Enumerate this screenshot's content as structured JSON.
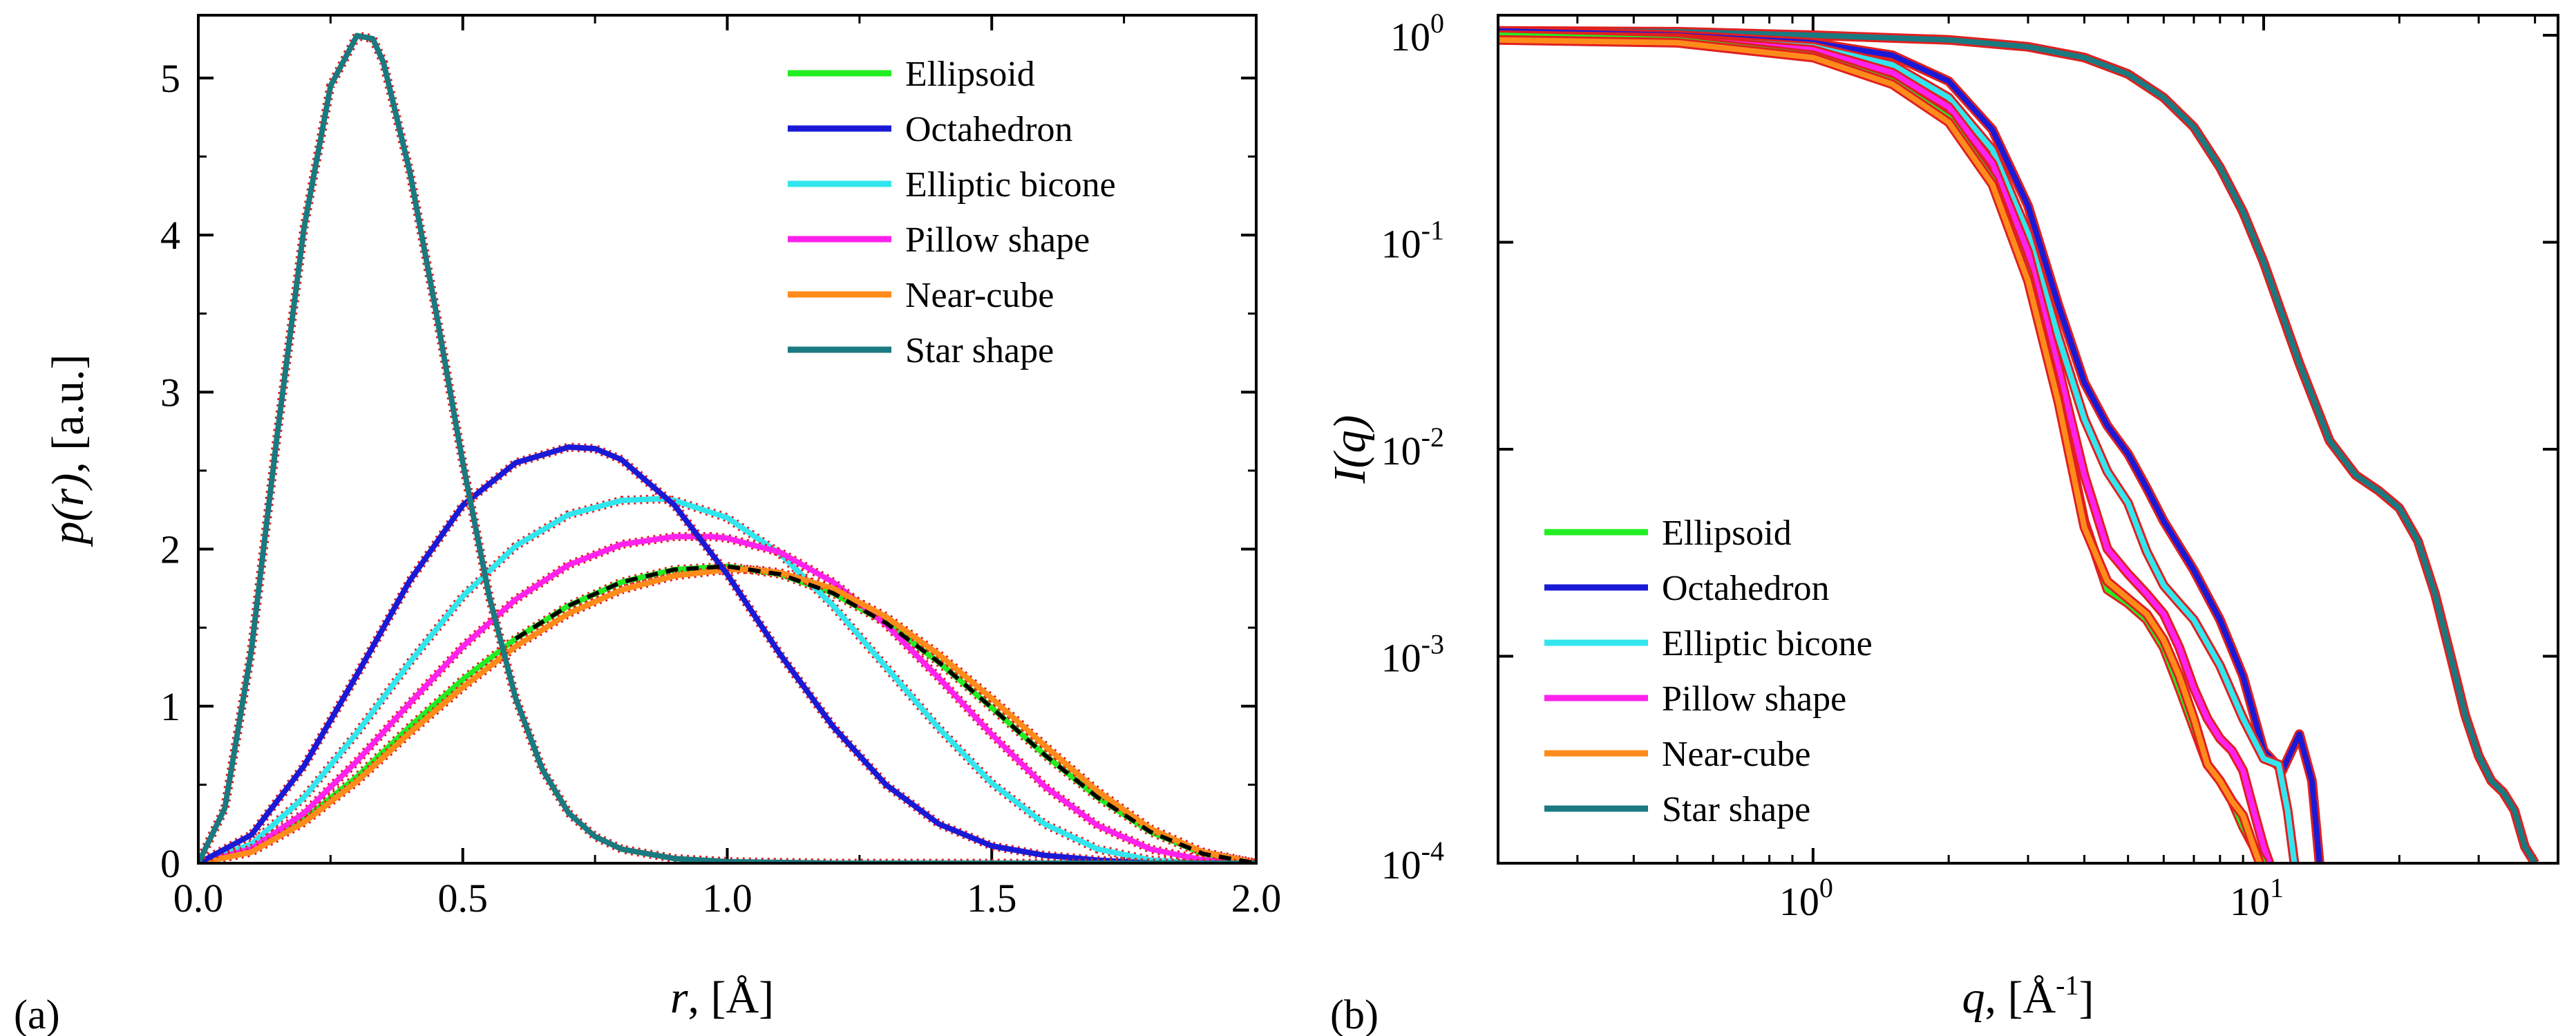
{
  "colors": {
    "Ellipsoid": "#22ee22",
    "Octahedron": "#1a1ad6",
    "Elliptic bicone": "#33e6ee",
    "Pillow shape": "#ff22ee",
    "Near-cube": "#ff8c1a",
    "Star shape": "#1a7a80",
    "error_bars": "#e02020"
  },
  "chart_data": [
    {
      "type": "line",
      "panel_label": "(a)",
      "xlabel_main": "r",
      "xlabel_unit": ", [Å]",
      "ylabel_main": "p(r)",
      "ylabel_unit": ", [a.u.]",
      "xlim": [
        0.0,
        2.0
      ],
      "ylim": [
        0,
        5.4
      ],
      "xticks": [
        0.0,
        0.5,
        1.0,
        1.5,
        2.0
      ],
      "xtick_labels": [
        "0.0",
        "0.5",
        "1.0",
        "1.5",
        "2.0"
      ],
      "yticks": [
        0,
        1,
        2,
        3,
        4,
        5
      ],
      "ytick_labels": [
        "0",
        "1",
        "2",
        "3",
        "4",
        "5"
      ],
      "legend_position": "top-right",
      "legend": [
        "Ellipsoid",
        "Octahedron",
        "Elliptic bicone",
        "Pillow shape",
        "Near-cube",
        "Star shape"
      ],
      "series": [
        {
          "name": "Ellipsoid",
          "x": [
            0.0,
            0.1,
            0.2,
            0.3,
            0.4,
            0.5,
            0.6,
            0.7,
            0.8,
            0.9,
            1.0,
            1.1,
            1.2,
            1.3,
            1.4,
            1.5,
            1.6,
            1.7,
            1.8,
            1.9,
            2.0
          ],
          "y": [
            0.0,
            0.08,
            0.28,
            0.55,
            0.87,
            1.17,
            1.43,
            1.64,
            1.79,
            1.87,
            1.89,
            1.84,
            1.72,
            1.53,
            1.28,
            0.99,
            0.69,
            0.42,
            0.2,
            0.06,
            0.0
          ]
        },
        {
          "name": "Octahedron",
          "x": [
            0.0,
            0.1,
            0.2,
            0.3,
            0.4,
            0.5,
            0.6,
            0.7,
            0.75,
            0.8,
            0.9,
            1.0,
            1.1,
            1.2,
            1.3,
            1.4,
            1.5,
            1.6,
            1.7,
            1.8,
            1.9,
            2.0
          ],
          "y": [
            0.0,
            0.18,
            0.62,
            1.2,
            1.8,
            2.28,
            2.55,
            2.65,
            2.64,
            2.57,
            2.28,
            1.84,
            1.33,
            0.87,
            0.5,
            0.25,
            0.11,
            0.05,
            0.02,
            0.0,
            0.0,
            0.0
          ]
        },
        {
          "name": "Elliptic bicone",
          "x": [
            0.0,
            0.1,
            0.2,
            0.3,
            0.4,
            0.5,
            0.6,
            0.7,
            0.8,
            0.87,
            0.9,
            1.0,
            1.1,
            1.2,
            1.3,
            1.4,
            1.5,
            1.6,
            1.7,
            1.8,
            1.9,
            2.0
          ],
          "y": [
            0.0,
            0.12,
            0.42,
            0.83,
            1.28,
            1.7,
            2.02,
            2.22,
            2.31,
            2.32,
            2.31,
            2.2,
            1.97,
            1.64,
            1.25,
            0.86,
            0.51,
            0.25,
            0.09,
            0.02,
            0.0,
            0.0
          ]
        },
        {
          "name": "Pillow shape",
          "x": [
            0.0,
            0.1,
            0.2,
            0.3,
            0.4,
            0.5,
            0.6,
            0.7,
            0.8,
            0.9,
            0.97,
            1.0,
            1.1,
            1.2,
            1.3,
            1.4,
            1.5,
            1.6,
            1.7,
            1.8,
            1.9,
            2.0
          ],
          "y": [
            0.0,
            0.09,
            0.32,
            0.65,
            1.02,
            1.38,
            1.68,
            1.9,
            2.03,
            2.08,
            2.08,
            2.07,
            1.98,
            1.79,
            1.52,
            1.18,
            0.82,
            0.49,
            0.24,
            0.09,
            0.02,
            0.0
          ]
        },
        {
          "name": "Near-cube",
          "x": [
            0.0,
            0.1,
            0.2,
            0.3,
            0.4,
            0.5,
            0.6,
            0.7,
            0.8,
            0.9,
            1.0,
            1.05,
            1.1,
            1.2,
            1.3,
            1.4,
            1.5,
            1.6,
            1.7,
            1.8,
            1.9,
            2.0
          ],
          "y": [
            0.0,
            0.07,
            0.26,
            0.52,
            0.83,
            1.12,
            1.38,
            1.59,
            1.74,
            1.83,
            1.87,
            1.87,
            1.85,
            1.75,
            1.57,
            1.33,
            1.05,
            0.75,
            0.46,
            0.22,
            0.07,
            0.0
          ]
        },
        {
          "name": "Star shape",
          "x": [
            0.0,
            0.05,
            0.1,
            0.15,
            0.2,
            0.25,
            0.3,
            0.33,
            0.35,
            0.4,
            0.45,
            0.5,
            0.55,
            0.6,
            0.65,
            0.7,
            0.75,
            0.8,
            0.9,
            1.0,
            1.2,
            1.5,
            2.0
          ],
          "y": [
            0.0,
            0.35,
            1.35,
            2.75,
            4.05,
            4.95,
            5.27,
            5.25,
            5.1,
            4.4,
            3.5,
            2.55,
            1.7,
            1.05,
            0.6,
            0.32,
            0.17,
            0.09,
            0.03,
            0.01,
            0.0,
            0.0,
            0.0
          ]
        }
      ]
    },
    {
      "type": "line",
      "panel_label": "(b)",
      "xlabel_main": "q",
      "xlabel_unit": ", [Å",
      "xlabel_sup": "-1",
      "xlabel_close": "]",
      "ylabel_main": "I(q)",
      "xscale": "log",
      "yscale": "log",
      "xlim": [
        0.2,
        45
      ],
      "ylim": [
        0.0001,
        1.25
      ],
      "xticks": [
        1,
        10
      ],
      "xtick_labels": [
        {
          "base": "10",
          "exp": "0"
        },
        {
          "base": "10",
          "exp": "1"
        }
      ],
      "yticks": [
        1,
        0.1,
        0.01,
        0.001,
        0.0001
      ],
      "ytick_labels": [
        {
          "base": "10",
          "exp": "0"
        },
        {
          "base": "10",
          "exp": "-1"
        },
        {
          "base": "10",
          "exp": "-2"
        },
        {
          "base": "10",
          "exp": "-3"
        },
        {
          "base": "10",
          "exp": "-4"
        }
      ],
      "legend_position": "bottom-left",
      "legend": [
        "Ellipsoid",
        "Octahedron",
        "Elliptic bicone",
        "Pillow shape",
        "Near-cube",
        "Star shape"
      ],
      "series": [
        {
          "name": "Ellipsoid",
          "x": [
            0.2,
            0.5,
            1.0,
            1.5,
            2.0,
            2.5,
            3.0,
            3.5,
            4.0,
            4.5,
            5.0,
            5.5,
            6.0,
            6.5,
            7.0,
            7.5,
            8.0,
            8.5,
            9.0,
            9.5,
            10.0
          ],
          "y": [
            1.0,
            0.95,
            0.8,
            0.6,
            0.4,
            0.2,
            0.07,
            0.018,
            0.0045,
            0.0021,
            0.0018,
            0.0015,
            0.0011,
            0.0007,
            0.00045,
            0.0003,
            0.00025,
            0.0002,
            0.00015,
            0.00012,
            0.0001
          ]
        },
        {
          "name": "Octahedron",
          "x": [
            0.2,
            0.5,
            1.0,
            1.5,
            2.0,
            2.5,
            3.0,
            3.5,
            4.0,
            4.5,
            5.0,
            5.5,
            6.0,
            7.0,
            8.0,
            9.0,
            10.0,
            11.0,
            12.0,
            12.8,
            13.3
          ],
          "y": [
            1.05,
            1.0,
            0.92,
            0.8,
            0.6,
            0.35,
            0.15,
            0.05,
            0.021,
            0.013,
            0.0095,
            0.0065,
            0.0045,
            0.0026,
            0.0015,
            0.0008,
            0.00035,
            0.00028,
            0.00042,
            0.00025,
            0.0001
          ]
        },
        {
          "name": "Elliptic bicone",
          "x": [
            0.2,
            0.5,
            1.0,
            1.5,
            2.0,
            2.5,
            3.0,
            3.5,
            4.0,
            4.5,
            5.0,
            5.5,
            6.0,
            6.5,
            7.0,
            8.0,
            9.0,
            10.0,
            10.8,
            11.3,
            11.7
          ],
          "y": [
            1.0,
            0.97,
            0.88,
            0.72,
            0.5,
            0.28,
            0.11,
            0.035,
            0.014,
            0.0078,
            0.0055,
            0.0032,
            0.0022,
            0.0018,
            0.0015,
            0.0009,
            0.0005,
            0.00032,
            0.0003,
            0.00018,
            0.0001
          ]
        },
        {
          "name": "Pillow shape",
          "x": [
            0.2,
            0.5,
            1.0,
            1.5,
            2.0,
            2.5,
            3.0,
            3.5,
            4.0,
            4.5,
            5.0,
            5.5,
            6.0,
            6.5,
            7.0,
            7.5,
            8.0,
            8.5,
            9.0,
            9.5,
            10.0,
            10.3
          ],
          "y": [
            1.0,
            0.96,
            0.85,
            0.66,
            0.45,
            0.24,
            0.09,
            0.025,
            0.0075,
            0.0033,
            0.0025,
            0.002,
            0.0016,
            0.0011,
            0.0007,
            0.0005,
            0.0004,
            0.00035,
            0.00028,
            0.00018,
            0.00012,
            0.0001
          ]
        },
        {
          "name": "Near-cube",
          "x": [
            0.2,
            0.5,
            1.0,
            1.5,
            2.0,
            2.5,
            3.0,
            3.5,
            4.0,
            4.5,
            5.0,
            5.5,
            6.0,
            6.5,
            7.0,
            7.5,
            8.0,
            8.5,
            9.0,
            9.5,
            9.8
          ],
          "y": [
            0.95,
            0.92,
            0.78,
            0.58,
            0.38,
            0.19,
            0.065,
            0.017,
            0.0042,
            0.0023,
            0.0019,
            0.0016,
            0.0012,
            0.0008,
            0.0005,
            0.0003,
            0.00025,
            0.0002,
            0.00017,
            0.00012,
            0.0001
          ]
        },
        {
          "name": "Star shape",
          "x": [
            0.2,
            0.5,
            1.0,
            2.0,
            3.0,
            4.0,
            5.0,
            6.0,
            7.0,
            8.0,
            9.0,
            10.0,
            12.0,
            14.0,
            16.0,
            18.0,
            20.0,
            22.0,
            24.0,
            26.0,
            28.0,
            30.0,
            32.0,
            34.0,
            36.0,
            38.0,
            40.0
          ],
          "y": [
            1.05,
            1.04,
            1.0,
            0.95,
            0.88,
            0.78,
            0.65,
            0.5,
            0.36,
            0.23,
            0.14,
            0.08,
            0.026,
            0.011,
            0.0075,
            0.0063,
            0.0052,
            0.0036,
            0.002,
            0.001,
            0.00052,
            0.00033,
            0.00025,
            0.00022,
            0.00018,
            0.00012,
            0.0001
          ]
        }
      ]
    }
  ]
}
